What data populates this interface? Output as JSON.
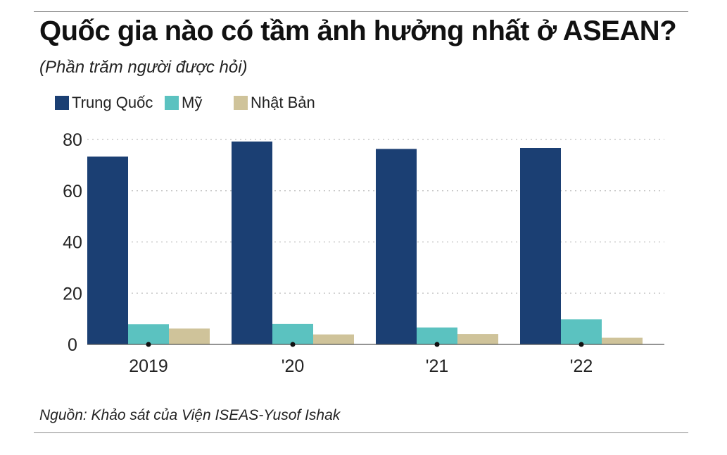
{
  "header": {
    "title": "Quốc gia nào có tầm ảnh hưởng nhất ở ASEAN?",
    "subtitle": "(Phần trăm người được hỏi)"
  },
  "footer": {
    "source": "Nguồn: Khảo sát của Viện ISEAS-Yusof Ishak"
  },
  "chart_data": {
    "type": "bar",
    "title": "Quốc gia nào có tầm ảnh hưởng nhất ở ASEAN?",
    "subtitle": "(Phần trăm người được hỏi)",
    "xlabel": "",
    "ylabel": "",
    "categories": [
      "2019",
      "'20",
      "'21",
      "'22"
    ],
    "series": [
      {
        "name": "Trung Quốc",
        "color": "#1b3f73",
        "values": [
          73.3,
          79.2,
          76.3,
          76.7
        ]
      },
      {
        "name": "Mỹ",
        "color": "#5bc2c0",
        "values": [
          7.9,
          8.0,
          6.6,
          9.8
        ]
      },
      {
        "name": "Nhật Bản",
        "color": "#cfc39a",
        "values": [
          6.2,
          3.9,
          4.1,
          2.6
        ]
      }
    ],
    "ylim": [
      0,
      80
    ],
    "yticks": [
      0,
      20,
      40,
      60,
      80
    ],
    "grid": true,
    "legend_position": "top-left"
  }
}
